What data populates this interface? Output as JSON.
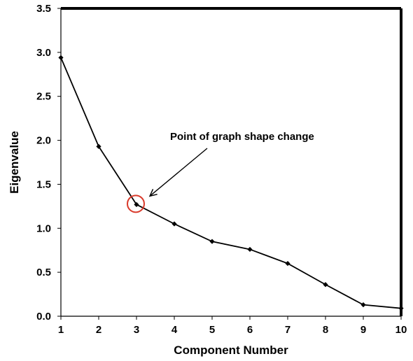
{
  "chart_data": {
    "type": "line",
    "title": "",
    "xlabel": "Component Number",
    "ylabel": "Eigenvalue",
    "x": [
      1,
      2,
      3,
      4,
      5,
      6,
      7,
      8,
      9,
      10
    ],
    "series": [
      {
        "values": [
          2.94,
          1.93,
          1.27,
          1.05,
          0.85,
          0.76,
          0.6,
          0.36,
          0.13,
          0.09
        ]
      }
    ],
    "xlim": [
      1,
      10
    ],
    "ylim": [
      0,
      3.5
    ],
    "x_ticks": [
      "1",
      "2",
      "3",
      "4",
      "5",
      "6",
      "7",
      "8",
      "9",
      "10"
    ],
    "y_ticks": [
      "0.0",
      "0.5",
      "1.0",
      "1.5",
      "2.0",
      "2.5",
      "3.0",
      "3.5"
    ],
    "y_tick_values": [
      0,
      0.5,
      1.0,
      1.5,
      2.0,
      2.5,
      3.0,
      3.5
    ],
    "grid": false,
    "line_color": "#000000",
    "highlight_color": "#d93a2b",
    "annotation": {
      "text": "Point of graph shape change",
      "target_x": 3,
      "target_y": 1.27
    }
  }
}
